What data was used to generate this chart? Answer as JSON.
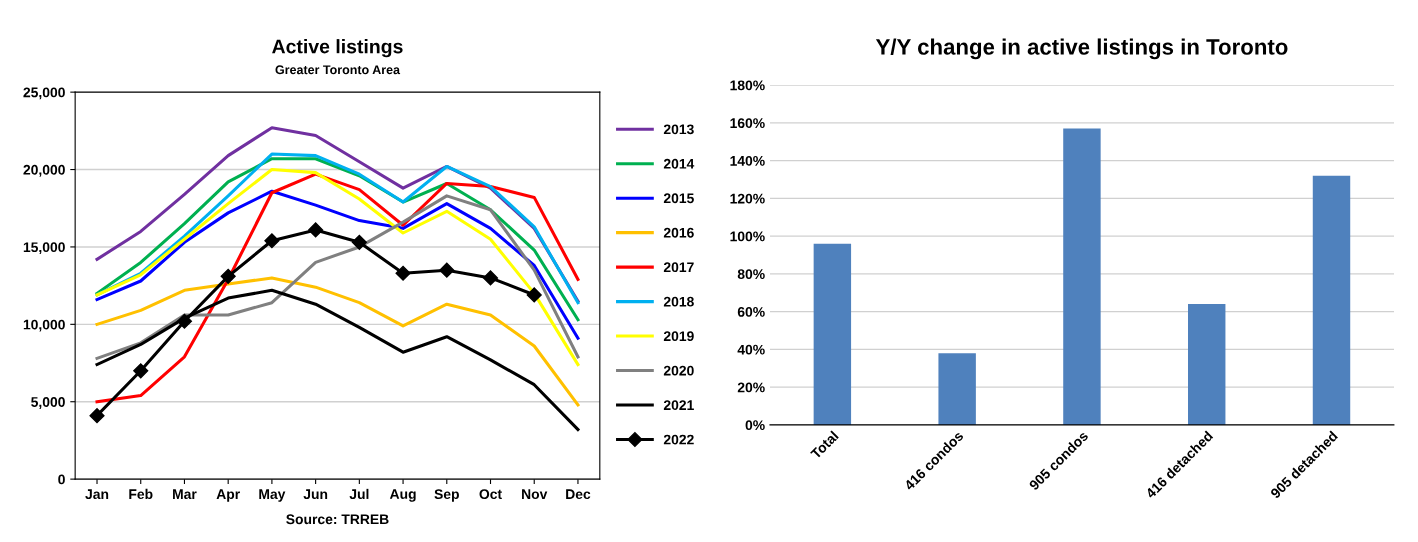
{
  "chart_data": [
    {
      "type": "line",
      "title": "Active listings",
      "subtitle": "Greater Toronto Area",
      "annotations": [
        "Source: TRREB"
      ],
      "categories": [
        "Jan",
        "Feb",
        "Mar",
        "Apr",
        "May",
        "Jun",
        "Jul",
        "Aug",
        "Sep",
        "Oct",
        "Nov",
        "Dec"
      ],
      "ylim": [
        0,
        25000
      ],
      "yticks": [
        {
          "value": 0,
          "label": "0"
        },
        {
          "value": 5000,
          "label": "5,000"
        },
        {
          "value": 10000,
          "label": "10,000"
        },
        {
          "value": 15000,
          "label": "15,000"
        },
        {
          "value": 20000,
          "label": "20,000"
        },
        {
          "value": 25000,
          "label": "25,000"
        }
      ],
      "grid": "y",
      "legend": "right",
      "marker": "none",
      "series": [
        {
          "name": "2013",
          "color": "#7030a0",
          "values": [
            14200,
            16000,
            18400,
            20900,
            22700,
            22200,
            20500,
            18800,
            20200,
            18800,
            16200,
            11500
          ]
        },
        {
          "name": "2014",
          "color": "#00b050",
          "values": [
            12000,
            14000,
            16500,
            19200,
            20700,
            20700,
            19600,
            17900,
            19100,
            17400,
            14800,
            10300
          ]
        },
        {
          "name": "2015",
          "color": "#0000ff",
          "values": [
            11600,
            12800,
            15300,
            17200,
            18600,
            17700,
            16700,
            16200,
            17800,
            16200,
            13800,
            9100
          ]
        },
        {
          "name": "2016",
          "color": "#ffc000",
          "values": [
            10000,
            10900,
            12200,
            12600,
            13000,
            12400,
            11400,
            9900,
            11300,
            10600,
            8600,
            4800
          ]
        },
        {
          "name": "2017",
          "color": "#ff0000",
          "values": [
            5000,
            5400,
            7900,
            12900,
            18500,
            19700,
            18700,
            16400,
            19100,
            18900,
            18200,
            12900
          ]
        },
        {
          "name": "2018",
          "color": "#00b0f0",
          "values": [
            11900,
            13300,
            15700,
            18300,
            21000,
            20900,
            19700,
            17900,
            20200,
            18900,
            16300,
            11400
          ]
        },
        {
          "name": "2019",
          "color": "#ffff00",
          "values": [
            11900,
            13200,
            15500,
            17800,
            20000,
            19800,
            18100,
            15900,
            17300,
            15500,
            12000,
            7400
          ]
        },
        {
          "name": "2020",
          "color": "#808080",
          "values": [
            7800,
            8800,
            10600,
            10600,
            11400,
            14000,
            15000,
            16600,
            18300,
            17400,
            13500,
            7900
          ]
        },
        {
          "name": "2021",
          "color": "#000000",
          "values": [
            7400,
            8700,
            10400,
            11700,
            12200,
            11300,
            9800,
            8200,
            9200,
            7700,
            6100,
            3200
          ]
        },
        {
          "name": "2022",
          "color": "#000000",
          "marker": "diamond",
          "values": [
            4100,
            7000,
            10200,
            13100,
            15400,
            16100,
            15300,
            13300,
            13500,
            13000,
            11900,
            null
          ]
        }
      ]
    },
    {
      "type": "bar",
      "title": "Y/Y change in active listings in Toronto",
      "categories": [
        "Total",
        "416 condos",
        "905 condos",
        "416 detached",
        "905 detached"
      ],
      "values": [
        96,
        38,
        157,
        64,
        132
      ],
      "color": "#4f81bd",
      "ylim": [
        0,
        180
      ],
      "yticks": [
        {
          "value": 0,
          "label": "0%"
        },
        {
          "value": 20,
          "label": "20%"
        },
        {
          "value": 40,
          "label": "40%"
        },
        {
          "value": 60,
          "label": "60%"
        },
        {
          "value": 80,
          "label": "80%"
        },
        {
          "value": 100,
          "label": "100%"
        },
        {
          "value": 120,
          "label": "120%"
        },
        {
          "value": 140,
          "label": "140%"
        },
        {
          "value": 160,
          "label": "160%"
        },
        {
          "value": 180,
          "label": "180%"
        }
      ],
      "grid": "y"
    }
  ]
}
